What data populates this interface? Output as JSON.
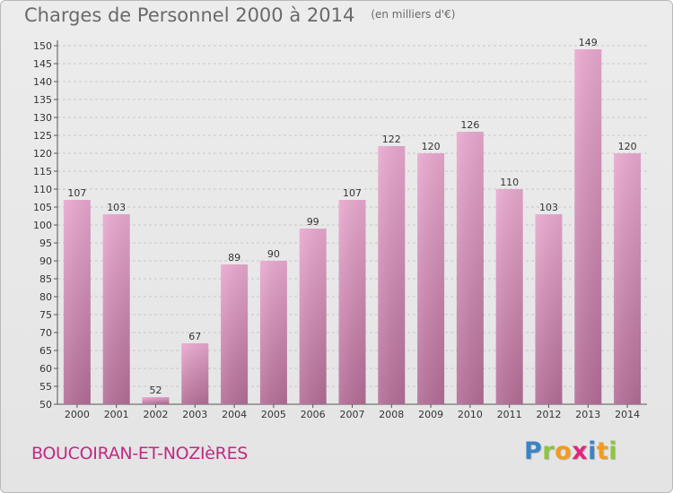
{
  "header": {
    "title": "Charges de Personnel 2000 à 2014",
    "subtitle": "(en milliers d'€)"
  },
  "footer": {
    "city": "BOUCOIRAN-ET-NOZIèRES",
    "logo_letters": [
      "P",
      "r",
      "o",
      "x",
      "i",
      "t",
      "i"
    ],
    "logo_colors": [
      "#3a84c6",
      "#8cc63e",
      "#f39b1f",
      "#e1267c",
      "#3a84c6",
      "#f39b1f",
      "#8cc63e"
    ]
  },
  "chart_data": {
    "type": "bar",
    "categories": [
      "2000",
      "2001",
      "2002",
      "2003",
      "2004",
      "2005",
      "2006",
      "2007",
      "2008",
      "2009",
      "2010",
      "2011",
      "2012",
      "2013",
      "2014"
    ],
    "values": [
      107,
      103,
      52,
      67,
      89,
      90,
      99,
      107,
      122,
      120,
      126,
      110,
      103,
      149,
      120
    ],
    "ylim": [
      50,
      150
    ],
    "yticks": [
      50,
      55,
      60,
      65,
      70,
      75,
      80,
      85,
      90,
      95,
      100,
      105,
      110,
      115,
      120,
      125,
      130,
      135,
      140,
      145,
      150
    ],
    "grid": true,
    "colors": {
      "bar_light": "#e9a9cf",
      "bar_dark": "#b46d97",
      "grid": "#c8c8c8"
    }
  }
}
